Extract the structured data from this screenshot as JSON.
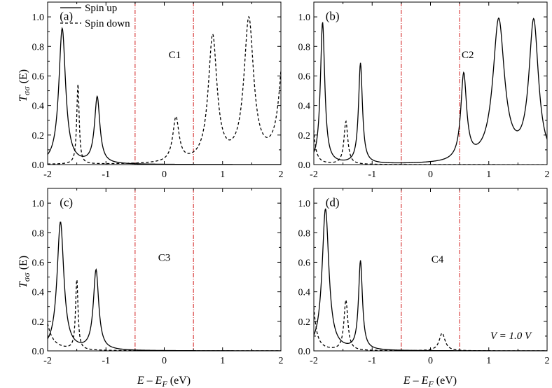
{
  "figure": {
    "legend": {
      "solid_label": "Spin up",
      "dashed_label": "Spin down",
      "placement": "top-left of panel (a)"
    },
    "ylabel_main": "T",
    "ylabel_sub": "σσ",
    "ylabel_suffix": " (E)",
    "xlabel_main": "E – E",
    "xlabel_sub": "F",
    "xlabel_suffix": " (eV)",
    "voltage_label": "V = 1.0 V",
    "bias_line_color": "#cc0000",
    "curve_color": "#000000"
  },
  "chart_data": [
    {
      "type": "line",
      "panel_label": "(a)",
      "config_label": "C1",
      "xlim": [
        -2,
        2
      ],
      "ylim": [
        0,
        1.1
      ],
      "xticks": [
        -2,
        -1,
        0,
        1,
        2
      ],
      "yticks": [
        0.0,
        0.2,
        0.4,
        0.6,
        0.8,
        1.0
      ],
      "bias_window": [
        -0.5,
        0.5
      ],
      "series": [
        {
          "name": "Spin up",
          "style": "solid",
          "peaks": [
            [
              -1.75,
              0.92,
              0.07
            ],
            [
              -1.15,
              0.45,
              0.055
            ]
          ]
        },
        {
          "name": "Spin down",
          "style": "dashed",
          "peaks": [
            [
              -1.48,
              0.54,
              0.025
            ],
            [
              0.2,
              0.3,
              0.065
            ],
            [
              0.83,
              0.85,
              0.09
            ],
            [
              1.45,
              0.96,
              0.1
            ],
            [
              2.07,
              0.9,
              0.1
            ]
          ]
        }
      ]
    },
    {
      "type": "line",
      "panel_label": "(b)",
      "config_label": "C2",
      "xlim": [
        -2,
        2
      ],
      "ylim": [
        0,
        1.1
      ],
      "xticks": [
        -2,
        -1,
        0,
        1,
        2
      ],
      "yticks": [
        0.0,
        0.2,
        0.4,
        0.6,
        0.8,
        1.0
      ],
      "bias_window": [
        -0.5,
        0.5
      ],
      "series": [
        {
          "name": "Spin up",
          "style": "solid",
          "peaks": [
            [
              -1.85,
              0.96,
              0.045
            ],
            [
              -1.2,
              0.68,
              0.04
            ],
            [
              0.57,
              0.58,
              0.06
            ],
            [
              1.17,
              0.96,
              0.12
            ],
            [
              1.77,
              0.95,
              0.1
            ]
          ]
        },
        {
          "name": "Spin down",
          "style": "dashed",
          "peaks": [
            [
              -2.05,
              0.6,
              0.04
            ],
            [
              -1.45,
              0.29,
              0.04
            ]
          ]
        }
      ]
    },
    {
      "type": "line",
      "panel_label": "(c)",
      "config_label": "C3",
      "xlim": [
        -2,
        2
      ],
      "ylim": [
        0,
        1.1
      ],
      "xticks": [
        -2,
        -1,
        0,
        1,
        2
      ],
      "yticks": [
        0.0,
        0.2,
        0.4,
        0.6,
        0.8,
        1.0
      ],
      "bias_window": [
        -0.5,
        0.5
      ],
      "series": [
        {
          "name": "Spin up",
          "style": "solid",
          "peaks": [
            [
              -1.78,
              0.87,
              0.07
            ],
            [
              -1.17,
              0.54,
              0.055
            ]
          ]
        },
        {
          "name": "Spin down",
          "style": "dashed",
          "peaks": [
            [
              -2.12,
              0.45,
              0.1
            ],
            [
              -1.5,
              0.48,
              0.025
            ]
          ]
        }
      ]
    },
    {
      "type": "line",
      "panel_label": "(d)",
      "config_label": "C4",
      "xlim": [
        -2,
        2
      ],
      "ylim": [
        0,
        1.1
      ],
      "xticks": [
        -2,
        -1,
        0,
        1,
        2
      ],
      "yticks": [
        0.0,
        0.2,
        0.4,
        0.6,
        0.8,
        1.0
      ],
      "bias_window": [
        -0.5,
        0.5
      ],
      "series": [
        {
          "name": "Spin up",
          "style": "solid",
          "peaks": [
            [
              -1.8,
              0.96,
              0.07
            ],
            [
              -1.2,
              0.6,
              0.04
            ]
          ]
        },
        {
          "name": "Spin down",
          "style": "dashed",
          "peaks": [
            [
              -2.05,
              0.5,
              0.06
            ],
            [
              -1.45,
              0.34,
              0.04
            ],
            [
              0.2,
              0.12,
              0.06
            ]
          ]
        }
      ]
    }
  ]
}
